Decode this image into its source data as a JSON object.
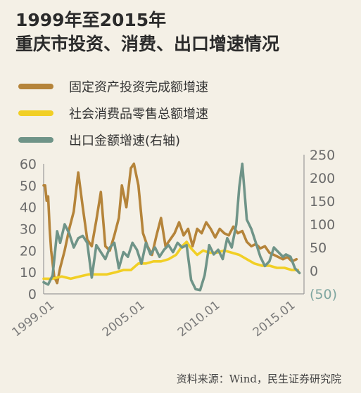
{
  "title_line1": "1999年至2015年",
  "title_line2": "重庆市投资、消费、出口增速情况",
  "legend": [
    {
      "label": "固定资产投资完成额增速",
      "color": "#b5843a"
    },
    {
      "label": "社会消费品零售总额增速",
      "color": "#f1cf25"
    },
    {
      "label": "出口金额增速(右轴)",
      "color": "#6f9488"
    }
  ],
  "source": "资料来源：Wind，民生证券研究院",
  "chart_data": {
    "type": "line",
    "x_ticks": [
      "1999.01",
      "2005.01",
      "2010.01",
      "2015.01"
    ],
    "y_left": {
      "min": 0,
      "max": 60,
      "ticks": [
        "0",
        "10",
        "20",
        "30",
        "40",
        "50",
        "60"
      ]
    },
    "y_right": {
      "min": -50,
      "max": 250,
      "ticks": [
        "(50)",
        "0",
        "50",
        "100",
        "150",
        "200",
        "250"
      ]
    },
    "grid": false,
    "legend_position": "top",
    "series": [
      {
        "name": "固定资产投资完成额增速",
        "axis": "left",
        "color": "#b5843a",
        "x": [
          1999.0,
          1999.1,
          1999.2,
          1999.3,
          1999.4,
          1999.5,
          1999.7,
          1999.9,
          2000.1,
          2000.4,
          2000.7,
          2001.0,
          2001.3,
          2001.6,
          2001.9,
          2002.2,
          2002.5,
          2002.8,
          2003.1,
          2003.4,
          2003.7,
          2004.0,
          2004.2,
          2004.5,
          2004.8,
          2005.0,
          2005.3,
          2005.6,
          2005.9,
          2006.2,
          2006.5,
          2006.8,
          2007.1,
          2007.4,
          2007.7,
          2008.0,
          2008.3,
          2008.6,
          2008.9,
          2009.2,
          2009.5,
          2009.8,
          2010.1,
          2010.4,
          2010.7,
          2011.0,
          2011.3,
          2011.6,
          2011.9,
          2012.2,
          2012.5,
          2012.8,
          2013.1,
          2013.4,
          2013.7,
          2014.0,
          2014.3,
          2014.6,
          2014.9,
          2015.2,
          2015.5,
          2015.8
        ],
        "y": [
          50,
          50,
          43,
          45,
          30,
          20,
          8,
          5,
          12,
          20,
          30,
          38,
          56,
          40,
          25,
          22,
          34,
          47,
          22,
          20,
          27,
          35,
          50,
          40,
          58,
          60,
          50,
          28,
          22,
          18,
          27,
          35,
          22,
          25,
          28,
          33,
          27,
          30,
          22,
          30,
          28,
          33,
          30,
          26,
          30,
          28,
          27,
          31,
          28,
          29,
          24,
          22,
          23,
          21,
          22,
          19,
          18,
          17,
          16,
          17,
          15,
          16
        ]
      },
      {
        "name": "社会消费品零售总额增速",
        "axis": "left",
        "color": "#f1cf25",
        "x": [
          1999.0,
          1999.6,
          2000.2,
          2000.8,
          2001.4,
          2002.0,
          2002.6,
          2003.2,
          2003.8,
          2004.3,
          2004.8,
          2005.3,
          2005.8,
          2006.3,
          2006.8,
          2007.3,
          2007.8,
          2008.2,
          2008.5,
          2008.8,
          2009.2,
          2009.6,
          2010.0,
          2010.5,
          2011.0,
          2011.5,
          2012.0,
          2012.5,
          2013.0,
          2013.5,
          2014.0,
          2014.5,
          2015.0,
          2015.5,
          2015.9
        ],
        "y": [
          7,
          7,
          8,
          7,
          8,
          9,
          9,
          9,
          10,
          11,
          11,
          14,
          14,
          15,
          15,
          16,
          18,
          22,
          24,
          21,
          18,
          20,
          19,
          19,
          20,
          19,
          18,
          16,
          14,
          13,
          13,
          12,
          12,
          11,
          11
        ]
      },
      {
        "name": "出口金额增速(右轴)",
        "axis": "right",
        "color": "#6f9488",
        "x": [
          1999.0,
          1999.3,
          1999.6,
          1999.9,
          2000.1,
          2000.4,
          2000.7,
          2001.0,
          2001.3,
          2001.6,
          2001.9,
          2002.2,
          2002.5,
          2002.8,
          2003.1,
          2003.4,
          2003.7,
          2004.0,
          2004.3,
          2004.6,
          2004.9,
          2005.2,
          2005.5,
          2005.8,
          2006.1,
          2006.4,
          2006.7,
          2007.0,
          2007.3,
          2007.6,
          2007.9,
          2008.2,
          2008.5,
          2008.8,
          2009.1,
          2009.4,
          2009.7,
          2010.0,
          2010.3,
          2010.6,
          2010.9,
          2011.2,
          2011.5,
          2011.8,
          2012.0,
          2012.2,
          2012.5,
          2012.8,
          2013.1,
          2013.4,
          2013.7,
          2014.0,
          2014.3,
          2014.6,
          2014.9,
          2015.1,
          2015.4,
          2015.7,
          2016.0
        ],
        "y": [
          -25,
          -30,
          -10,
          85,
          60,
          100,
          80,
          50,
          70,
          75,
          60,
          -15,
          55,
          40,
          25,
          50,
          60,
          5,
          40,
          30,
          60,
          45,
          15,
          60,
          35,
          50,
          30,
          45,
          55,
          40,
          60,
          50,
          55,
          -20,
          -40,
          -42,
          -10,
          55,
          35,
          45,
          25,
          70,
          50,
          100,
          180,
          230,
          110,
          90,
          60,
          30,
          10,
          20,
          50,
          40,
          30,
          35,
          30,
          5,
          -5
        ]
      }
    ]
  }
}
